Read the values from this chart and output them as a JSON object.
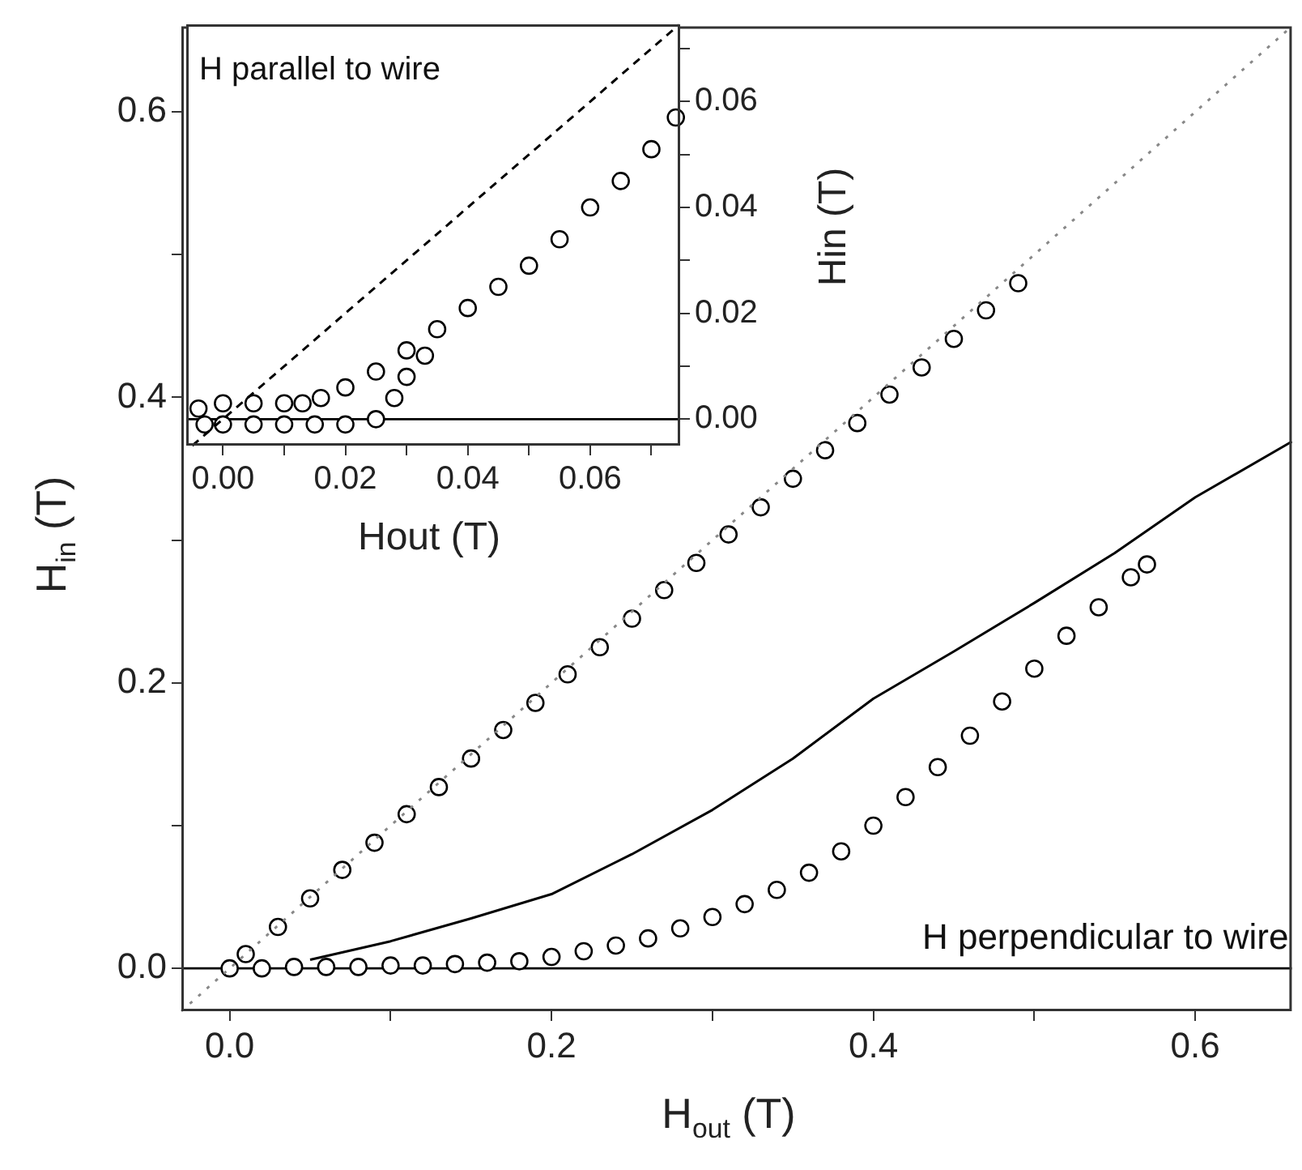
{
  "chart_data": [
    {
      "type": "scatter",
      "xlabel": "H$_{out}$ (T)",
      "ylabel": "H$_{in}$ (T)",
      "xlim": [
        -0.03,
        0.66
      ],
      "ylim": [
        -0.03,
        0.66
      ],
      "xticks": [
        {
          "value": 0,
          "label": "0.0"
        },
        {
          "value": 0.1,
          "label": null
        },
        0.2,
        {
          "value": 0.3,
          "label": null
        },
        0.4,
        {
          "value": 0.5,
          "label": null
        },
        0.6
      ],
      "yticks": [
        {
          "value": 0,
          "label": "0.0"
        },
        {
          "value": 0.1,
          "label": null
        },
        0.2,
        {
          "value": 0.3,
          "label": null
        },
        0.4,
        {
          "value": 0.5,
          "label": null
        },
        0.6
      ],
      "annotations": [
        "H perpendicular to wire"
      ],
      "ref_lines": [
        {
          "axis": "y",
          "value": 0,
          "color": "#000000"
        }
      ],
      "series": [
        {
          "type": "line",
          "line_style": "dotted",
          "color": "#888888",
          "x": [
            -0.03,
            0.66
          ],
          "values": [
            -0.03,
            0.66
          ]
        },
        {
          "type": "line",
          "line_style": "solid",
          "color": "#000000",
          "x": [
            0.05,
            0.1,
            0.15,
            0.2,
            0.25,
            0.3,
            0.35,
            0.4,
            0.45,
            0.5,
            0.55,
            0.6,
            0.66
          ],
          "values": [
            0.006,
            0.019,
            0.035,
            0.052,
            0.08,
            0.111,
            0.147,
            0.189,
            0.222,
            0.256,
            0.291,
            0.33,
            0.369
          ]
        },
        {
          "marker": "circle",
          "color": "#000000",
          "x": [
            0.01,
            0.03,
            0.05,
            0.07,
            0.09,
            0.11,
            0.13,
            0.15,
            0.17,
            0.19,
            0.21,
            0.23,
            0.25,
            0.27,
            0.29,
            0.31,
            0.33,
            0.35,
            0.37,
            0.39,
            0.41,
            0.43,
            0.45,
            0.47,
            0.49
          ],
          "values": [
            0.01,
            0.029,
            0.049,
            0.069,
            0.088,
            0.108,
            0.127,
            0.147,
            0.167,
            0.186,
            0.206,
            0.225,
            0.245,
            0.265,
            0.284,
            0.304,
            0.323,
            0.343,
            0.363,
            0.382,
            0.402,
            0.421,
            0.441,
            0.461,
            0.48
          ]
        },
        {
          "marker": "circle",
          "color": "#000000",
          "x": [
            0,
            0.02,
            0.04,
            0.06,
            0.08,
            0.1,
            0.12,
            0.14,
            0.16,
            0.18,
            0.2,
            0.22,
            0.24,
            0.26,
            0.28,
            0.3,
            0.32,
            0.34,
            0.36,
            0.38,
            0.4,
            0.42,
            0.44,
            0.46,
            0.48,
            0.5,
            0.52,
            0.54,
            0.56,
            0.57
          ],
          "values": [
            0,
            0,
            0.001,
            0.001,
            0.001,
            0.002,
            0.002,
            0.003,
            0.004,
            0.005,
            0.008,
            0.012,
            0.016,
            0.021,
            0.028,
            0.036,
            0.045,
            0.055,
            0.067,
            0.082,
            0.1,
            0.12,
            0.141,
            0.163,
            0.187,
            0.21,
            0.233,
            0.253,
            0.274,
            0.283
          ]
        }
      ]
    },
    {
      "type": "scatter",
      "xlabel": "Hout (T)",
      "ylabel": "Hin (T)",
      "xlim": [
        -0.006,
        0.0747
      ],
      "ylim": [
        -0.005,
        0.0746
      ],
      "xticks": [
        {
          "value": 0,
          "label": "0.00"
        },
        {
          "value": 0.01,
          "label": null
        },
        {
          "value": 0.02,
          "label": "0.02"
        },
        {
          "value": 0.03,
          "label": null
        },
        {
          "value": 0.04,
          "label": "0.04"
        },
        {
          "value": 0.05,
          "label": null
        },
        {
          "value": 0.06,
          "label": "0.06"
        },
        {
          "value": 0.07,
          "label": null
        }
      ],
      "yticks": [
        {
          "value": 0,
          "label": "0.00"
        },
        {
          "value": 0.01,
          "label": null
        },
        {
          "value": 0.02,
          "label": "0.02"
        },
        {
          "value": 0.03,
          "label": null
        },
        {
          "value": 0.04,
          "label": "0.04"
        },
        {
          "value": 0.05,
          "label": null
        },
        {
          "value": 0.06,
          "label": "0.06"
        },
        {
          "value": 0.07,
          "label": null
        }
      ],
      "annotations": [
        "H parallel to wire"
      ],
      "ref_lines": [
        {
          "axis": "y",
          "value": 0,
          "color": "#000000"
        }
      ],
      "series": [
        {
          "type": "line",
          "line_style": "dashed",
          "color": "#000000",
          "x": [
            -0.005,
            0.0745
          ],
          "values": [
            -0.005,
            0.0745
          ]
        },
        {
          "marker": "circle",
          "color": "#000000",
          "x": [
            -0.004,
            0,
            0.005,
            0.01,
            0.013,
            0.016,
            0.02,
            0.025,
            0.03,
            0.035,
            0.04,
            0.045,
            0.05,
            0.055,
            0.06,
            0.065,
            0.07,
            0.074
          ],
          "values": [
            0.002,
            0.003,
            0.003,
            0.003,
            0.003,
            0.004,
            0.006,
            0.009,
            0.013,
            0.017,
            0.021,
            0.025,
            0.029,
            0.034,
            0.04,
            0.045,
            0.051,
            0.057
          ]
        },
        {
          "marker": "circle",
          "color": "#000000",
          "x": [
            -0.003,
            0,
            0.005,
            0.01,
            0.015,
            0.02,
            0.025,
            0.028,
            0.03,
            0.033
          ],
          "values": [
            -0.001,
            -0.001,
            -0.001,
            -0.001,
            -0.001,
            -0.001,
            0,
            0.004,
            0.008,
            0.012
          ]
        }
      ]
    }
  ]
}
